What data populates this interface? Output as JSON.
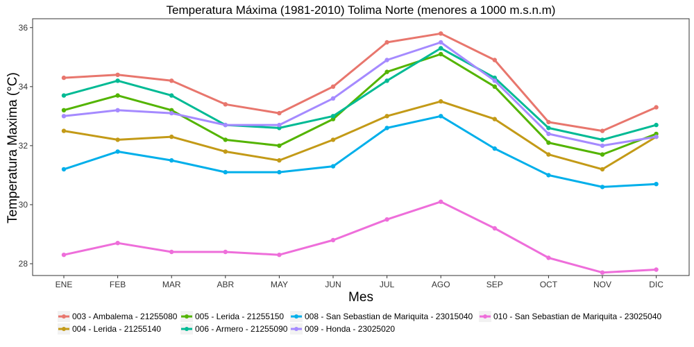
{
  "chart_data": {
    "type": "line",
    "title": "Temperatura Máxima (1981-2010) Tolima Norte (menores a 1000 m.s.n.m)",
    "xlabel": "Mes",
    "ylabel": "Temperatura Maxima (°C)",
    "categories": [
      "ENE",
      "FEB",
      "MAR",
      "ABR",
      "MAY",
      "JUN",
      "JUL",
      "AGO",
      "SEP",
      "OCT",
      "NOV",
      "DIC"
    ],
    "ylim": [
      27.6,
      36.3
    ],
    "yticks": [
      28,
      30,
      32,
      34,
      36
    ],
    "grid": false,
    "legend_position": "bottom",
    "series": [
      {
        "name": "003 - Ambalema - 21255080",
        "color": "#E8766D",
        "values": [
          34.3,
          34.4,
          34.2,
          33.4,
          33.1,
          34.0,
          35.5,
          35.8,
          34.9,
          32.8,
          32.5,
          33.3
        ]
      },
      {
        "name": "004 - Lerida - 21255140",
        "color": "#C39A17",
        "values": [
          32.5,
          32.2,
          32.3,
          31.8,
          31.5,
          32.2,
          33.0,
          33.5,
          32.9,
          31.7,
          31.2,
          32.3
        ]
      },
      {
        "name": "005 - Lerida - 21255150",
        "color": "#53B400",
        "values": [
          33.2,
          33.7,
          33.2,
          32.2,
          32.0,
          32.9,
          34.5,
          35.1,
          34.0,
          32.1,
          31.7,
          32.4
        ]
      },
      {
        "name": "006 - Armero - 21255090",
        "color": "#00BA94",
        "values": [
          33.7,
          34.2,
          33.7,
          32.7,
          32.6,
          33.0,
          34.2,
          35.3,
          34.3,
          32.6,
          32.2,
          32.7
        ]
      },
      {
        "name": "008 - San Sebastian de Mariquita - 23015040",
        "color": "#00AFEA",
        "values": [
          31.2,
          31.8,
          31.5,
          31.1,
          31.1,
          31.3,
          32.6,
          33.0,
          31.9,
          31.0,
          30.6,
          30.7
        ]
      },
      {
        "name": "009 - Honda - 23025020",
        "color": "#A58AFF",
        "values": [
          33.0,
          33.2,
          33.1,
          32.7,
          32.7,
          33.6,
          34.9,
          35.5,
          34.2,
          32.4,
          32.0,
          32.3
        ]
      },
      {
        "name": "010 - San Sebastian de Mariquita - 23025040",
        "color": "#EE6EDA",
        "values": [
          28.3,
          28.7,
          28.4,
          28.4,
          28.3,
          28.8,
          29.5,
          30.1,
          29.2,
          28.2,
          27.7,
          27.8
        ]
      }
    ]
  }
}
